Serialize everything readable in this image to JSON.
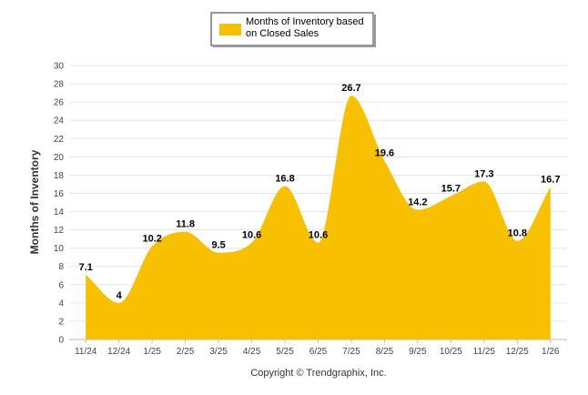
{
  "chart_data": {
    "type": "area",
    "title": "",
    "xlabel": "",
    "ylabel": "Months of Inventory",
    "ylim": [
      0,
      30
    ],
    "ytick_step": 2,
    "yticks": [
      "0",
      "2",
      "4",
      "6",
      "8",
      "10",
      "12",
      "14",
      "16",
      "18",
      "20",
      "22",
      "24",
      "26",
      "28",
      "30"
    ],
    "grid": true,
    "legend_position": "top-center",
    "categories": [
      "11/24",
      "12/24",
      "1/25",
      "2/25",
      "3/25",
      "4/25",
      "5/25",
      "6/25",
      "7/25",
      "8/25",
      "9/25",
      "10/25",
      "11/25",
      "12/25",
      "1/26"
    ],
    "series": [
      {
        "name": "Months of Inventory based on Closed Sales",
        "legend_lines": [
          "Months of Inventory based",
          "on Closed Sales"
        ],
        "color": "#F7C000",
        "values": [
          7.1,
          4,
          10.2,
          11.8,
          9.5,
          10.6,
          16.8,
          10.6,
          26.7,
          19.6,
          14.2,
          15.7,
          17.3,
          10.8,
          16.7
        ],
        "labels": [
          "7.1",
          "4",
          "10.2",
          "11.8",
          "9.5",
          "10.6",
          "16.8",
          "10.6",
          "26.7",
          "19.6",
          "14.2",
          "15.7",
          "17.3",
          "10.8",
          "16.7"
        ]
      }
    ]
  },
  "footer": {
    "copyright": "Copyright © Trendgraphix, Inc."
  }
}
